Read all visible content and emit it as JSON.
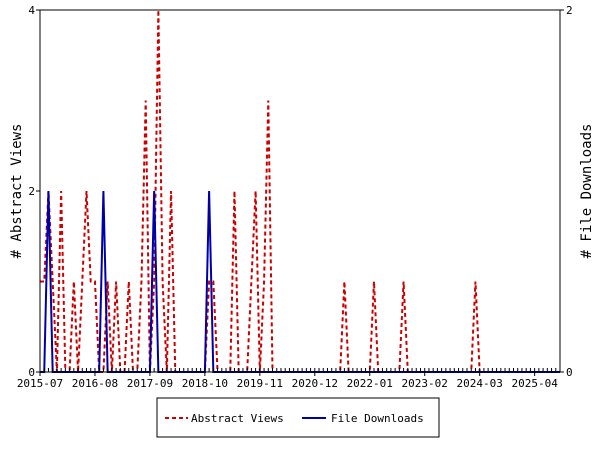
{
  "chart_data": {
    "type": "line",
    "xlabel": "",
    "ylabel_left": "# Abstract Views",
    "ylabel_right": "# File Downloads",
    "x_ticks": [
      "2015-07",
      "2016-08",
      "2017-09",
      "2018-10",
      "2019-11",
      "2020-12",
      "2022-01",
      "2023-02",
      "2024-03",
      "2025-04"
    ],
    "x_range": [
      "2015-07",
      "2025-10"
    ],
    "ylim_left": [
      0,
      4
    ],
    "ylim_right": [
      0,
      2
    ],
    "yticks_left": [
      "0",
      "2",
      "4"
    ],
    "yticks_right": [
      "0",
      "2"
    ],
    "grid": false,
    "legend_position": "bottom",
    "series": [
      {
        "name": "Abstract Views",
        "axis": "left",
        "color": "#cc0000",
        "style": "dashed",
        "points": [
          [
            "2015-07",
            1
          ],
          [
            "2015-08",
            1
          ],
          [
            "2015-09",
            2
          ],
          [
            "2015-10",
            1
          ],
          [
            "2015-11",
            0
          ],
          [
            "2015-12",
            2
          ],
          [
            "2016-01",
            0
          ],
          [
            "2016-02",
            0
          ],
          [
            "2016-03",
            1
          ],
          [
            "2016-04",
            0
          ],
          [
            "2016-05",
            1
          ],
          [
            "2016-06",
            2
          ],
          [
            "2016-07",
            1
          ],
          [
            "2016-08",
            1
          ],
          [
            "2016-09",
            0
          ],
          [
            "2016-10",
            0
          ],
          [
            "2016-11",
            1
          ],
          [
            "2016-12",
            0
          ],
          [
            "2017-01",
            1
          ],
          [
            "2017-02",
            0
          ],
          [
            "2017-03",
            0
          ],
          [
            "2017-04",
            1
          ],
          [
            "2017-05",
            0
          ],
          [
            "2017-06",
            0
          ],
          [
            "2017-07",
            1
          ],
          [
            "2017-08",
            3
          ],
          [
            "2017-09",
            0
          ],
          [
            "2017-10",
            1
          ],
          [
            "2017-11",
            4
          ],
          [
            "2017-12",
            1
          ],
          [
            "2018-01",
            0
          ],
          [
            "2018-02",
            2
          ],
          [
            "2018-03",
            0
          ],
          [
            "2018-04",
            0
          ],
          [
            "2018-05",
            0
          ],
          [
            "2018-06",
            0
          ],
          [
            "2018-07",
            0
          ],
          [
            "2018-08",
            0
          ],
          [
            "2018-09",
            0
          ],
          [
            "2018-10",
            0
          ],
          [
            "2018-11",
            1
          ],
          [
            "2018-12",
            1
          ],
          [
            "2019-01",
            0
          ],
          [
            "2019-02",
            0
          ],
          [
            "2019-03",
            0
          ],
          [
            "2019-04",
            0
          ],
          [
            "2019-05",
            2
          ],
          [
            "2019-06",
            0
          ],
          [
            "2019-07",
            0
          ],
          [
            "2019-08",
            0
          ],
          [
            "2019-09",
            1
          ],
          [
            "2019-10",
            2
          ],
          [
            "2019-11",
            0
          ],
          [
            "2019-12",
            1
          ],
          [
            "2020-01",
            3
          ],
          [
            "2020-02",
            0
          ],
          [
            "2020-03",
            0
          ],
          [
            "2020-04",
            0
          ],
          [
            "2020-05",
            0
          ],
          [
            "2020-06",
            0
          ],
          [
            "2020-07",
            0
          ],
          [
            "2020-08",
            0
          ],
          [
            "2020-09",
            0
          ],
          [
            "2020-10",
            0
          ],
          [
            "2020-11",
            0
          ],
          [
            "2020-12",
            0
          ],
          [
            "2021-01",
            0
          ],
          [
            "2021-02",
            0
          ],
          [
            "2021-03",
            0
          ],
          [
            "2021-04",
            0
          ],
          [
            "2021-05",
            0
          ],
          [
            "2021-06",
            0
          ],
          [
            "2021-07",
            1
          ],
          [
            "2021-08",
            0
          ],
          [
            "2021-09",
            0
          ],
          [
            "2021-10",
            0
          ],
          [
            "2021-11",
            0
          ],
          [
            "2021-12",
            0
          ],
          [
            "2022-01",
            0
          ],
          [
            "2022-02",
            1
          ],
          [
            "2022-03",
            0
          ],
          [
            "2022-04",
            0
          ],
          [
            "2022-05",
            0
          ],
          [
            "2022-06",
            0
          ],
          [
            "2022-07",
            0
          ],
          [
            "2022-08",
            0
          ],
          [
            "2022-09",
            1
          ],
          [
            "2022-10",
            0
          ],
          [
            "2022-11",
            0
          ],
          [
            "2022-12",
            0
          ],
          [
            "2023-01",
            0
          ],
          [
            "2023-02",
            0
          ],
          [
            "2023-03",
            0
          ],
          [
            "2023-04",
            0
          ],
          [
            "2023-05",
            0
          ],
          [
            "2023-06",
            0
          ],
          [
            "2023-07",
            0
          ],
          [
            "2023-08",
            0
          ],
          [
            "2023-09",
            0
          ],
          [
            "2023-10",
            0
          ],
          [
            "2023-11",
            0
          ],
          [
            "2023-12",
            0
          ],
          [
            "2024-01",
            0
          ],
          [
            "2024-02",
            1
          ],
          [
            "2024-03",
            0
          ],
          [
            "2024-04",
            0
          ],
          [
            "2024-05",
            0
          ],
          [
            "2024-06",
            0
          ],
          [
            "2024-07",
            0
          ],
          [
            "2024-08",
            0
          ],
          [
            "2024-09",
            0
          ],
          [
            "2024-10",
            0
          ],
          [
            "2024-11",
            0
          ],
          [
            "2024-12",
            0
          ],
          [
            "2025-01",
            0
          ],
          [
            "2025-02",
            0
          ],
          [
            "2025-03",
            0
          ],
          [
            "2025-04",
            0
          ],
          [
            "2025-05",
            0
          ],
          [
            "2025-06",
            0
          ],
          [
            "2025-07",
            0
          ],
          [
            "2025-08",
            0
          ],
          [
            "2025-09",
            0
          ],
          [
            "2025-10",
            0
          ]
        ]
      },
      {
        "name": "File Downloads",
        "axis": "right",
        "color": "#0000aa",
        "style": "solid",
        "points": [
          [
            "2015-07",
            0
          ],
          [
            "2015-08",
            0
          ],
          [
            "2015-09",
            1
          ],
          [
            "2015-10",
            0
          ],
          [
            "2015-11",
            0
          ],
          [
            "2015-12",
            0
          ],
          [
            "2016-01",
            0
          ],
          [
            "2016-02",
            0
          ],
          [
            "2016-03",
            0
          ],
          [
            "2016-04",
            0
          ],
          [
            "2016-05",
            0
          ],
          [
            "2016-06",
            0
          ],
          [
            "2016-07",
            0
          ],
          [
            "2016-08",
            0
          ],
          [
            "2016-09",
            0
          ],
          [
            "2016-10",
            1
          ],
          [
            "2016-11",
            0
          ],
          [
            "2016-12",
            0
          ],
          [
            "2017-01",
            0
          ],
          [
            "2017-02",
            0
          ],
          [
            "2017-03",
            0
          ],
          [
            "2017-04",
            0
          ],
          [
            "2017-05",
            0
          ],
          [
            "2017-06",
            0
          ],
          [
            "2017-07",
            0
          ],
          [
            "2017-08",
            0
          ],
          [
            "2017-09",
            0
          ],
          [
            "2017-10",
            1
          ],
          [
            "2017-11",
            0
          ],
          [
            "2017-12",
            0
          ],
          [
            "2018-01",
            0
          ],
          [
            "2018-02",
            0
          ],
          [
            "2018-03",
            0
          ],
          [
            "2018-04",
            0
          ],
          [
            "2018-05",
            0
          ],
          [
            "2018-06",
            0
          ],
          [
            "2018-07",
            0
          ],
          [
            "2018-08",
            0
          ],
          [
            "2018-09",
            0
          ],
          [
            "2018-10",
            0
          ],
          [
            "2018-11",
            1
          ],
          [
            "2018-12",
            0
          ],
          [
            "2019-01",
            0
          ],
          [
            "2019-02",
            0
          ],
          [
            "2019-03",
            0
          ],
          [
            "2019-04",
            0
          ],
          [
            "2019-05",
            0
          ],
          [
            "2019-06",
            0
          ],
          [
            "2019-07",
            0
          ],
          [
            "2019-08",
            0
          ],
          [
            "2019-09",
            0
          ],
          [
            "2019-10",
            0
          ],
          [
            "2019-11",
            0
          ],
          [
            "2019-12",
            0
          ],
          [
            "2020-01",
            0
          ],
          [
            "2020-02",
            0
          ],
          [
            "2020-03",
            0
          ],
          [
            "2020-04",
            0
          ],
          [
            "2020-05",
            0
          ],
          [
            "2020-06",
            0
          ],
          [
            "2020-07",
            0
          ],
          [
            "2020-08",
            0
          ],
          [
            "2020-09",
            0
          ],
          [
            "2020-10",
            0
          ],
          [
            "2020-11",
            0
          ],
          [
            "2020-12",
            0
          ],
          [
            "2021-01",
            0
          ],
          [
            "2021-02",
            0
          ],
          [
            "2021-03",
            0
          ],
          [
            "2021-04",
            0
          ],
          [
            "2021-05",
            0
          ],
          [
            "2021-06",
            0
          ],
          [
            "2021-07",
            0
          ],
          [
            "2021-08",
            0
          ],
          [
            "2021-09",
            0
          ],
          [
            "2021-10",
            0
          ],
          [
            "2021-11",
            0
          ],
          [
            "2021-12",
            0
          ],
          [
            "2022-01",
            0
          ],
          [
            "2022-02",
            0
          ],
          [
            "2022-03",
            0
          ],
          [
            "2022-04",
            0
          ],
          [
            "2022-05",
            0
          ],
          [
            "2022-06",
            0
          ],
          [
            "2022-07",
            0
          ],
          [
            "2022-08",
            0
          ],
          [
            "2022-09",
            0
          ],
          [
            "2022-10",
            0
          ],
          [
            "2022-11",
            0
          ],
          [
            "2022-12",
            0
          ],
          [
            "2023-01",
            0
          ],
          [
            "2023-02",
            0
          ],
          [
            "2023-03",
            0
          ],
          [
            "2023-04",
            0
          ],
          [
            "2023-05",
            0
          ],
          [
            "2023-06",
            0
          ],
          [
            "2023-07",
            0
          ],
          [
            "2023-08",
            0
          ],
          [
            "2023-09",
            0
          ],
          [
            "2023-10",
            0
          ],
          [
            "2023-11",
            0
          ],
          [
            "2023-12",
            0
          ],
          [
            "2024-01",
            0
          ],
          [
            "2024-02",
            0
          ],
          [
            "2024-03",
            0
          ],
          [
            "2024-04",
            0
          ],
          [
            "2024-05",
            0
          ],
          [
            "2024-06",
            0
          ],
          [
            "2024-07",
            0
          ],
          [
            "2024-08",
            0
          ],
          [
            "2024-09",
            0
          ],
          [
            "2024-10",
            0
          ],
          [
            "2024-11",
            0
          ],
          [
            "2024-12",
            0
          ],
          [
            "2025-01",
            0
          ],
          [
            "2025-02",
            0
          ],
          [
            "2025-03",
            0
          ],
          [
            "2025-04",
            0
          ],
          [
            "2025-05",
            0
          ],
          [
            "2025-06",
            0
          ],
          [
            "2025-07",
            0
          ],
          [
            "2025-08",
            0
          ],
          [
            "2025-09",
            0
          ],
          [
            "2025-10",
            0
          ]
        ]
      }
    ]
  }
}
